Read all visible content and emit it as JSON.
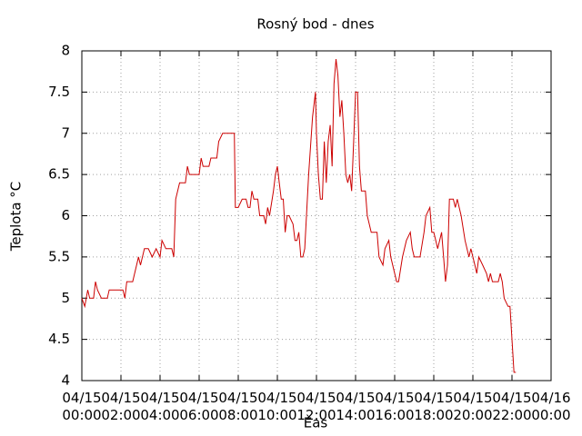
{
  "chart_data": {
    "type": "line",
    "title": "Rosný bod - dnes",
    "x_label": "Èas",
    "y_label": "Teplota °C",
    "series": [
      {
        "name": "Rosný bod",
        "color": "#cc0000",
        "x": [
          0,
          0.15,
          0.3,
          0.4,
          0.6,
          0.7,
          0.8,
          1.0,
          1.3,
          1.4,
          2.1,
          2.2,
          2.3,
          2.6,
          2.8,
          2.9,
          3.0,
          3.2,
          3.4,
          3.6,
          3.8,
          4.0,
          4.1,
          4.3,
          4.6,
          4.7,
          4.8,
          5.0,
          5.3,
          5.4,
          5.5,
          6.0,
          6.1,
          6.2,
          6.5,
          6.6,
          6.9,
          7.0,
          7.2,
          7.8,
          7.85,
          8.0,
          8.2,
          8.4,
          8.5,
          8.6,
          8.7,
          8.8,
          9.0,
          9.1,
          9.3,
          9.4,
          9.5,
          9.6,
          9.8,
          9.9,
          10.0,
          10.1,
          10.2,
          10.3,
          10.4,
          10.5,
          10.6,
          10.8,
          10.9,
          11.0,
          11.1,
          11.2,
          11.3,
          11.4,
          11.6,
          11.8,
          11.95,
          12.0,
          12.1,
          12.2,
          12.3,
          12.4,
          12.5,
          12.6,
          12.7,
          12.8,
          12.9,
          13.0,
          13.1,
          13.2,
          13.3,
          13.4,
          13.5,
          13.6,
          13.7,
          13.8,
          13.9,
          14.0,
          14.1,
          14.2,
          14.3,
          14.5,
          14.6,
          14.8,
          15.1,
          15.2,
          15.4,
          15.5,
          15.7,
          15.8,
          16.0,
          16.1,
          16.2,
          16.4,
          16.6,
          16.8,
          16.9,
          17.0,
          17.3,
          17.5,
          17.6,
          17.8,
          17.9,
          18.0,
          18.1,
          18.2,
          18.4,
          18.5,
          18.6,
          18.7,
          18.8,
          19.0,
          19.1,
          19.2,
          19.4,
          19.6,
          19.8,
          19.9,
          20.1,
          20.2,
          20.3,
          20.5,
          20.7,
          20.8,
          20.9,
          21.0,
          21.3,
          21.4,
          21.5,
          21.6,
          21.8,
          21.9,
          22.0,
          22.1,
          22.2
        ],
        "values": [
          5.0,
          4.9,
          5.1,
          5.0,
          5.0,
          5.2,
          5.1,
          5.0,
          5.0,
          5.1,
          5.1,
          5.0,
          5.2,
          5.2,
          5.4,
          5.5,
          5.4,
          5.6,
          5.6,
          5.5,
          5.6,
          5.5,
          5.7,
          5.6,
          5.6,
          5.5,
          6.2,
          6.4,
          6.4,
          6.6,
          6.5,
          6.5,
          6.7,
          6.6,
          6.6,
          6.7,
          6.7,
          6.9,
          7.0,
          7.0,
          6.1,
          6.1,
          6.2,
          6.2,
          6.1,
          6.1,
          6.3,
          6.2,
          6.2,
          6.0,
          6.0,
          5.9,
          6.1,
          6.0,
          6.3,
          6.5,
          6.6,
          6.4,
          6.2,
          6.2,
          5.8,
          6.0,
          6.0,
          5.9,
          5.7,
          5.7,
          5.8,
          5.5,
          5.5,
          5.6,
          6.5,
          7.2,
          7.5,
          7.0,
          6.5,
          6.2,
          6.2,
          6.9,
          6.4,
          6.9,
          7.1,
          6.6,
          7.6,
          7.9,
          7.7,
          7.2,
          7.4,
          7.0,
          6.5,
          6.4,
          6.5,
          6.3,
          6.9,
          7.5,
          7.5,
          6.6,
          6.3,
          6.3,
          6.0,
          5.8,
          5.8,
          5.5,
          5.4,
          5.6,
          5.7,
          5.5,
          5.3,
          5.2,
          5.2,
          5.5,
          5.7,
          5.8,
          5.6,
          5.5,
          5.5,
          5.8,
          6.0,
          6.1,
          5.8,
          5.8,
          5.7,
          5.6,
          5.8,
          5.5,
          5.2,
          5.4,
          6.2,
          6.2,
          6.1,
          6.2,
          6.0,
          5.7,
          5.5,
          5.6,
          5.4,
          5.3,
          5.5,
          5.4,
          5.3,
          5.2,
          5.3,
          5.2,
          5.2,
          5.3,
          5.2,
          5.0,
          4.9,
          4.9,
          4.5,
          4.1,
          4.1
        ]
      }
    ],
    "xlim": [
      0,
      24
    ],
    "xticks": [
      {
        "value": 0,
        "label": "04/15 00:00"
      },
      {
        "value": 2,
        "label": "04/15 02:00"
      },
      {
        "value": 4,
        "label": "04/15 04:00"
      },
      {
        "value": 6,
        "label": "04/15 06:00"
      },
      {
        "value": 8,
        "label": "04/15 08:00"
      },
      {
        "value": 10,
        "label": "04/15 10:00"
      },
      {
        "value": 12,
        "label": "04/15 12:00"
      },
      {
        "value": 14,
        "label": "04/15 14:00"
      },
      {
        "value": 16,
        "label": "04/15 16:00"
      },
      {
        "value": 18,
        "label": "04/15 18:00"
      },
      {
        "value": 20,
        "label": "04/15 20:00"
      },
      {
        "value": 22,
        "label": "04/15 22:00"
      },
      {
        "value": 24,
        "label": "04/16 00:00"
      }
    ],
    "ylim": [
      4,
      8
    ],
    "yticks": [
      4,
      {
        "value": 4.5,
        "label": "4.5"
      },
      5,
      {
        "value": 5.5,
        "label": "5.5"
      },
      6,
      {
        "value": 6.5,
        "label": "6.5"
      },
      7,
      {
        "value": 7.5,
        "label": "7.5"
      },
      8
    ],
    "grid": true
  }
}
